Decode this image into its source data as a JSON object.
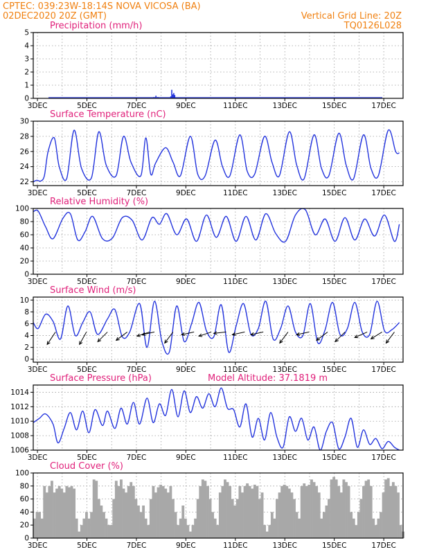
{
  "header": {
    "line1": "CPTEC:   039:23W-18:14S   NOVA VICOSA (BA)",
    "line2": "02DEC2020 20Z (GMT)",
    "right1": "Vertical Grid Line: 20Z",
    "right2": "TQ0126L028"
  },
  "colors": {
    "line": "#2233dd",
    "cloud": "#a8a8a8",
    "header": "#f08010",
    "title": "#e0207a",
    "arrow": "#000000"
  },
  "x_ticks": [
    "3DEC",
    "5DEC",
    "7DEC",
    "9DEC",
    "11DEC",
    "13DEC",
    "15DEC",
    "17DEC"
  ],
  "panels": [
    {
      "id": "precip",
      "title": "Precipitation (mm/h)",
      "subtitle": "",
      "yticks": [
        "0",
        "1",
        "2",
        "3",
        "4",
        "5"
      ]
    },
    {
      "id": "temp",
      "title": "Surface Temperature (nC)",
      "subtitle": "",
      "yticks": [
        "22",
        "24",
        "26",
        "28",
        "30"
      ]
    },
    {
      "id": "rh",
      "title": "Relative Humidity (%)",
      "subtitle": "",
      "yticks": [
        "0",
        "20",
        "40",
        "60",
        "80",
        "100"
      ]
    },
    {
      "id": "wind",
      "title": "Surface Wind (m/s)",
      "subtitle": "",
      "yticks": [
        "0",
        "2",
        "4",
        "6",
        "8",
        "10"
      ]
    },
    {
      "id": "pres",
      "title": "Surface Pressure (hPa)",
      "subtitle": "Model Altitude: 37.1819 m",
      "yticks": [
        "1006",
        "1008",
        "1010",
        "1012",
        "1014"
      ]
    },
    {
      "id": "cloud",
      "title": "Cloud Cover (%)",
      "subtitle": "",
      "yticks": [
        "0",
        "20",
        "40",
        "60",
        "80",
        "100"
      ]
    }
  ],
  "chart_data": [
    {
      "type": "bar",
      "id": "precip",
      "title": "Precipitation (mm/h)",
      "ylim": [
        0,
        5
      ],
      "x_unit": "days since 02DEC2020 20Z",
      "x": [
        4.88,
        4.96,
        5.04,
        5.56,
        5.6,
        5.64,
        5.68,
        5.72,
        5.8,
        6.2,
        6.28,
        6.8
      ],
      "values": [
        0.1,
        0.2,
        0.1,
        0.15,
        0.65,
        0.3,
        0.4,
        0.25,
        0.05,
        0.02,
        0.02,
        0.03
      ]
    },
    {
      "type": "line",
      "id": "temp",
      "title": "Surface Temperature (nC)",
      "ylim": [
        21.5,
        30
      ],
      "x": [
        0,
        0.15,
        0.3,
        0.45,
        0.6,
        0.85,
        1.05,
        1.35,
        1.65,
        1.95,
        2.35,
        2.65,
        2.95,
        3.35,
        3.65,
        3.95,
        4.35,
        4.55,
        4.75,
        4.95,
        5.35,
        5.65,
        5.95,
        6.35,
        6.65,
        6.95,
        7.35,
        7.65,
        7.95,
        8.35,
        8.65,
        8.95,
        9.35,
        9.65,
        9.95,
        10.35,
        10.65,
        10.95,
        11.35,
        11.65,
        11.95,
        12.35,
        12.65,
        12.95,
        13.35,
        13.65,
        13.95,
        14.35,
        14.65,
        14.8
      ],
      "y": [
        22.0,
        22.2,
        22.1,
        22.8,
        26.0,
        27.8,
        24.0,
        22.4,
        28.8,
        23.8,
        22.5,
        28.6,
        24.2,
        22.8,
        28.0,
        24.6,
        22.8,
        27.8,
        23.0,
        24.5,
        26.5,
        24.6,
        22.8,
        28.0,
        23.0,
        22.8,
        27.5,
        24.0,
        22.8,
        28.2,
        23.4,
        23.0,
        28.0,
        24.6,
        22.8,
        28.6,
        24.2,
        22.4,
        28.2,
        23.8,
        22.8,
        28.4,
        24.2,
        22.4,
        28.2,
        23.8,
        22.8,
        28.8,
        26.0,
        25.8
      ]
    },
    {
      "type": "line",
      "id": "rh",
      "title": "Relative Humidity (%)",
      "ylim": [
        0,
        100
      ],
      "x": [
        0,
        0.2,
        0.5,
        0.8,
        1.2,
        1.5,
        1.8,
        2.1,
        2.4,
        2.8,
        3.2,
        3.6,
        4.0,
        4.4,
        4.8,
        5.1,
        5.4,
        5.8,
        6.2,
        6.6,
        7.0,
        7.4,
        7.8,
        8.2,
        8.6,
        9.0,
        9.4,
        9.8,
        10.2,
        10.6,
        11.0,
        11.4,
        11.8,
        12.2,
        12.6,
        13.0,
        13.4,
        13.8,
        14.2,
        14.6,
        14.8
      ],
      "y": [
        95,
        96,
        72,
        54,
        85,
        92,
        52,
        65,
        88,
        54,
        55,
        86,
        82,
        52,
        86,
        76,
        92,
        60,
        84,
        50,
        90,
        56,
        88,
        50,
        88,
        52,
        92,
        62,
        50,
        90,
        98,
        60,
        84,
        50,
        86,
        52,
        84,
        58,
        90,
        50,
        76
      ]
    },
    {
      "type": "line",
      "id": "wind",
      "title": "Surface Wind (m/s)",
      "ylim": [
        -0.5,
        10.5
      ],
      "x": [
        0,
        0.2,
        0.5,
        0.8,
        1.1,
        1.4,
        1.7,
        2.0,
        2.3,
        2.6,
        3.0,
        3.3,
        3.6,
        3.9,
        4.3,
        4.6,
        4.9,
        5.2,
        5.5,
        5.8,
        6.1,
        6.4,
        6.7,
        7.0,
        7.3,
        7.6,
        7.9,
        8.2,
        8.5,
        8.8,
        9.1,
        9.4,
        9.7,
        10.0,
        10.3,
        10.6,
        10.9,
        11.2,
        11.5,
        11.8,
        12.1,
        12.4,
        12.7,
        13.0,
        13.3,
        13.6,
        13.9,
        14.2,
        14.5,
        14.8
      ],
      "y": [
        6.2,
        5.2,
        7.6,
        6.4,
        3.4,
        9.0,
        4.0,
        6.2,
        8.0,
        4.2,
        6.8,
        8.4,
        3.8,
        4.6,
        9.4,
        2.0,
        9.8,
        3.0,
        1.2,
        9.0,
        3.0,
        6.0,
        9.6,
        4.8,
        3.8,
        9.2,
        1.2,
        5.6,
        9.4,
        4.2,
        5.2,
        9.8,
        3.4,
        5.2,
        9.0,
        4.6,
        4.0,
        9.4,
        2.8,
        5.0,
        9.6,
        4.2,
        5.2,
        9.6,
        4.6,
        4.2,
        9.8,
        4.8,
        5.0,
        6.2
      ],
      "arrows": [
        {
          "x": 0.9,
          "u": -0.6,
          "v": -0.9
        },
        {
          "x": 2.15,
          "u": -0.5,
          "v": -0.9
        },
        {
          "x": 3.0,
          "u": -0.7,
          "v": -0.7
        },
        {
          "x": 3.8,
          "u": -0.8,
          "v": -0.6
        },
        {
          "x": 4.7,
          "u": -0.9,
          "v": -0.3
        },
        {
          "x": 4.9,
          "u": -0.9,
          "v": -0.2
        },
        {
          "x": 5.65,
          "u": -0.6,
          "v": -0.8
        },
        {
          "x": 6.5,
          "u": -0.9,
          "v": -0.2
        },
        {
          "x": 7.2,
          "u": -0.9,
          "v": -0.3
        },
        {
          "x": 7.8,
          "u": -0.9,
          "v": -0.1
        },
        {
          "x": 8.55,
          "u": -0.9,
          "v": -0.2
        },
        {
          "x": 9.3,
          "u": -0.9,
          "v": -0.2
        },
        {
          "x": 10.3,
          "u": -0.6,
          "v": -0.8
        },
        {
          "x": 11.15,
          "u": -0.9,
          "v": -0.2
        },
        {
          "x": 11.9,
          "u": -0.8,
          "v": -0.6
        },
        {
          "x": 12.6,
          "u": -0.7,
          "v": -0.7
        },
        {
          "x": 13.5,
          "u": -0.9,
          "v": -0.4
        },
        {
          "x": 14.1,
          "u": -0.8,
          "v": -0.5
        },
        {
          "x": 14.6,
          "u": -0.6,
          "v": -0.8
        }
      ]
    },
    {
      "type": "line",
      "id": "pres",
      "title": "Surface Pressure (hPa)",
      "ylim": [
        1006,
        1015
      ],
      "x": [
        0,
        0.25,
        0.5,
        0.8,
        1.0,
        1.25,
        1.5,
        1.75,
        2.0,
        2.25,
        2.5,
        2.8,
        3.0,
        3.3,
        3.55,
        3.8,
        4.05,
        4.3,
        4.6,
        4.85,
        5.1,
        5.35,
        5.6,
        5.85,
        6.1,
        6.35,
        6.6,
        6.85,
        7.1,
        7.35,
        7.6,
        7.85,
        8.1,
        8.35,
        8.6,
        8.85,
        9.1,
        9.35,
        9.6,
        9.85,
        10.1,
        10.35,
        10.6,
        10.85,
        11.1,
        11.35,
        11.6,
        11.85,
        12.1,
        12.35,
        12.6,
        12.85,
        13.1,
        13.35,
        13.6,
        13.85,
        14.1,
        14.35,
        14.6,
        14.8
      ],
      "y": [
        1009.8,
        1010.4,
        1011.0,
        1009.6,
        1007.0,
        1009.0,
        1011.2,
        1008.8,
        1011.4,
        1008.4,
        1011.6,
        1009.4,
        1011.4,
        1009.0,
        1011.8,
        1009.6,
        1012.6,
        1009.6,
        1013.2,
        1009.8,
        1012.4,
        1010.8,
        1014.4,
        1010.6,
        1014.2,
        1011.2,
        1013.4,
        1011.8,
        1013.8,
        1012.0,
        1014.6,
        1011.8,
        1011.6,
        1009.2,
        1012.4,
        1007.8,
        1010.4,
        1007.4,
        1011.2,
        1007.8,
        1006.4,
        1010.6,
        1008.6,
        1010.4,
        1007.4,
        1009.2,
        1006.0,
        1008.6,
        1009.8,
        1006.2,
        1007.8,
        1010.4,
        1006.4,
        1008.8,
        1006.8,
        1007.6,
        1006.2,
        1007.2,
        1006.4,
        1006.0
      ]
    },
    {
      "type": "bar",
      "id": "cloud",
      "title": "Cloud Cover (%)",
      "ylim": [
        0,
        100
      ],
      "x_start": 0,
      "x_step": 0.1,
      "values": [
        30,
        40,
        40,
        30,
        80,
        70,
        80,
        88,
        70,
        76,
        80,
        76,
        70,
        80,
        78,
        80,
        76,
        30,
        10,
        20,
        30,
        40,
        30,
        40,
        90,
        88,
        60,
        50,
        40,
        30,
        20,
        20,
        60,
        88,
        80,
        90,
        76,
        70,
        80,
        86,
        80,
        60,
        50,
        40,
        50,
        30,
        20,
        60,
        80,
        70,
        78,
        82,
        80,
        76,
        70,
        80,
        60,
        40,
        20,
        30,
        50,
        30,
        20,
        10,
        20,
        30,
        60,
        80,
        90,
        88,
        80,
        60,
        40,
        30,
        20,
        70,
        80,
        90,
        86,
        80,
        60,
        50,
        60,
        80,
        70,
        80,
        84,
        80,
        76,
        82,
        80,
        60,
        70,
        20,
        10,
        20,
        40,
        30,
        60,
        70,
        80,
        82,
        80,
        76,
        70,
        60,
        40,
        30,
        80,
        84,
        80,
        82,
        90,
        86,
        80,
        70,
        30,
        40,
        50,
        60,
        90,
        94,
        90,
        80,
        70,
        90,
        86,
        80,
        40,
        30,
        20,
        40,
        60,
        80,
        88,
        90,
        80,
        30,
        20,
        30,
        40,
        70,
        90,
        92,
        80,
        86,
        80,
        70,
        20,
        10
      ]
    }
  ]
}
